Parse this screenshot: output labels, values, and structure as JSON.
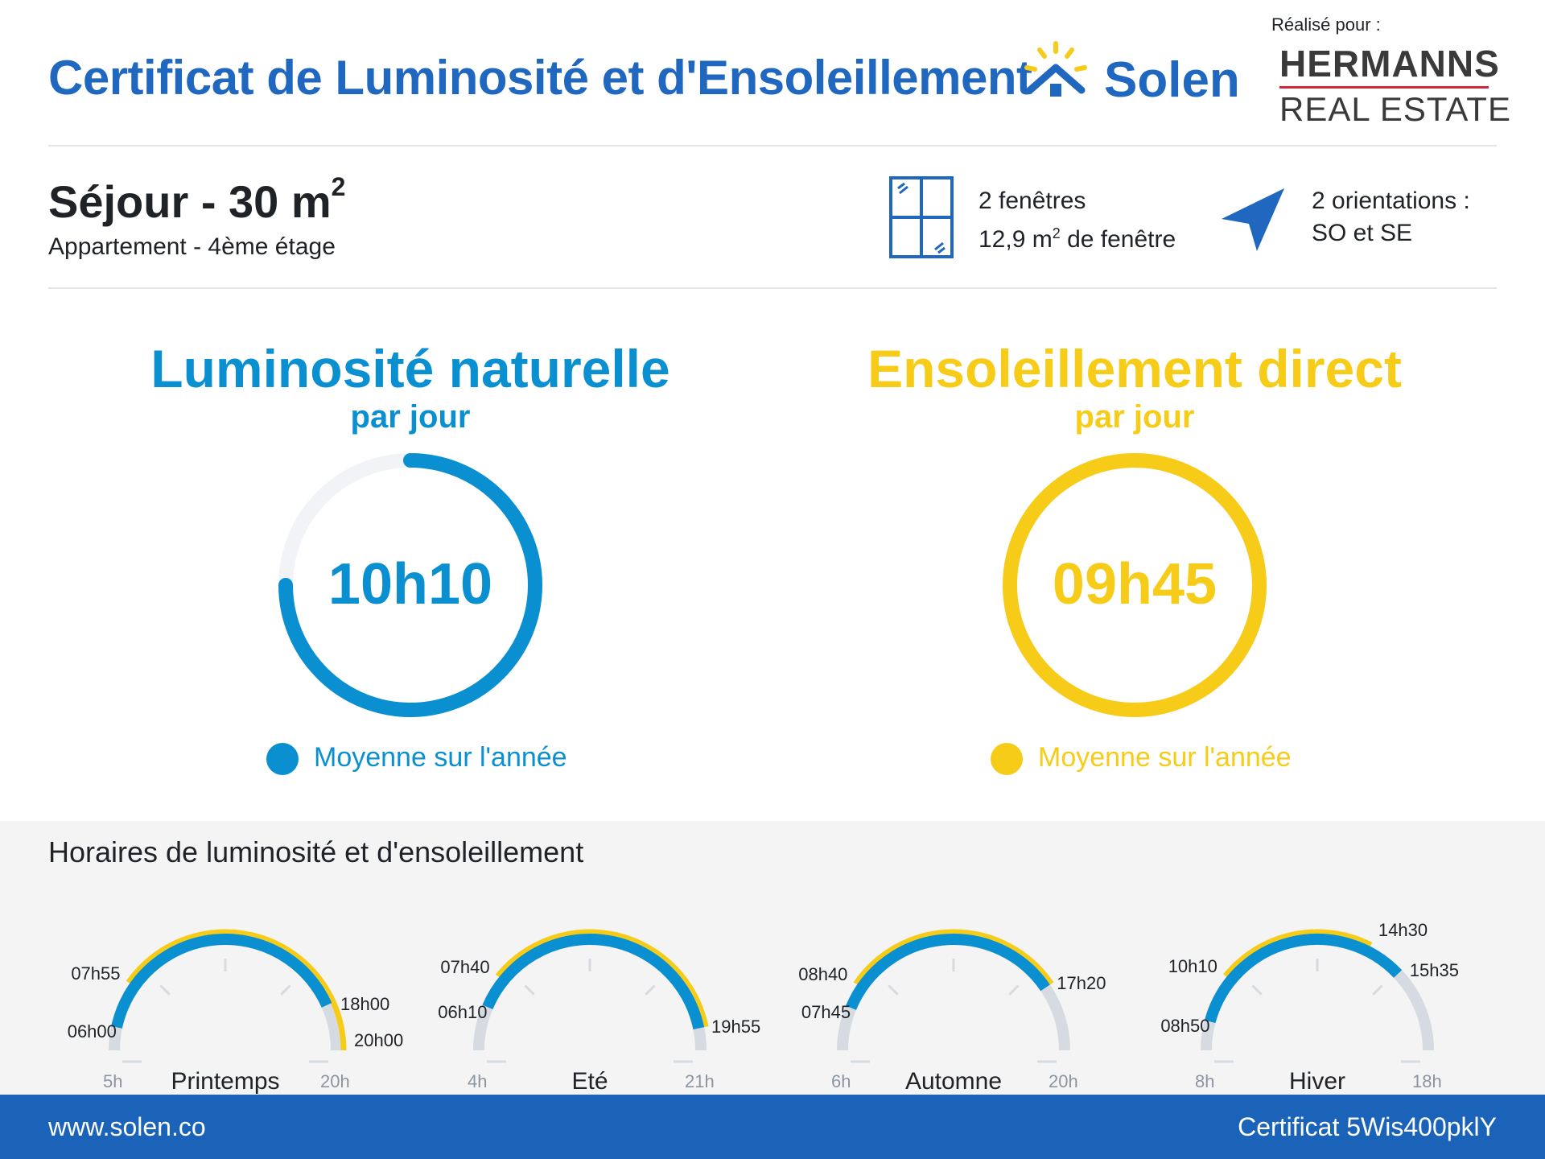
{
  "header": {
    "title": "Certificat de Luminosité et d'Ensoleillement",
    "brand": "Solen",
    "made_for_label": "Réalisé pour :",
    "client_line1": "HERMANNS",
    "client_line2": "REAL ESTATE"
  },
  "room": {
    "title": "Séjour - 30 m",
    "title_sup": "2",
    "subtitle": "Appartement - 4ème étage",
    "windows_line1": "2 fenêtres",
    "windows_line2_pre": "12,9 m",
    "windows_line2_sup": "2",
    "windows_line2_post": " de fenêtre",
    "orient_line1": "2 orientations :",
    "orient_line2": "SO et SE"
  },
  "luminosite": {
    "title": "Luminosité naturelle",
    "subtitle": "par jour",
    "value": "10h10",
    "fraction": 0.75,
    "legend": "Moyenne sur l'année",
    "color": "#0a8fd0"
  },
  "ensoleillement": {
    "title": "Ensoleillement direct",
    "subtitle": "par jour",
    "value": "09h45",
    "fraction": 1.0,
    "legend": "Moyenne sur l'année",
    "color": "#f6cc19"
  },
  "horaires": {
    "title": "Horaires de luminosité et d'ensoleillement",
    "seasons": [
      {
        "name": "Printemps",
        "min": "5h",
        "max": "20h",
        "min_h": 5,
        "max_h": 20,
        "lum_start_label": "06h00",
        "lum_end_label": "18h00",
        "sun_start_label": "07h55",
        "sun_end_label": "20h00"
      },
      {
        "name": "Eté",
        "min": "4h",
        "max": "21h",
        "min_h": 4,
        "max_h": 21,
        "lum_start_label": "06h10",
        "lum_end_label": "19h55",
        "sun_start_label": "07h40",
        "sun_end_label": "19h55"
      },
      {
        "name": "Automne",
        "min": "6h",
        "max": "20h",
        "min_h": 6,
        "max_h": 20,
        "lum_start_label": "07h45",
        "lum_end_label": "17h20",
        "sun_start_label": "08h40",
        "sun_end_label": "17h20"
      },
      {
        "name": "Hiver",
        "min": "8h",
        "max": "18h",
        "min_h": 8,
        "max_h": 18,
        "lum_start_label": "08h50",
        "lum_end_label": "15h35",
        "sun_start_label": "10h10",
        "sun_end_label": "14h30"
      }
    ]
  },
  "footer": {
    "website": "www.solen.co",
    "certificate": "Certificat 5Wis400pklY"
  },
  "colors": {
    "brand_blue": "#1f67bf",
    "light_blue": "#0a8fd0",
    "yellow": "#f6cc19",
    "track_grey": "#d5dbe0"
  }
}
